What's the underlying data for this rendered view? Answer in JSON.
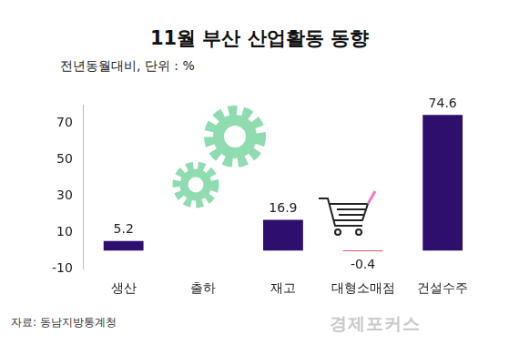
{
  "chart_data": {
    "type": "bar",
    "title": "11월 부산 산업활동 동향",
    "subtitle": "전년동월대비, 단위 : %",
    "source": "자료: 동남지방통계청",
    "credit": "경제포커스",
    "categories": [
      "생산",
      "출하",
      "재고",
      "대형소매점",
      "건설수주"
    ],
    "values": [
      5.2,
      null,
      16.9,
      -0.4,
      74.6
    ],
    "colors": [
      "#2e0f6e",
      "#2e0f6e",
      "#2e0f6e",
      "#d9262a",
      "#2e0f6e"
    ],
    "ylim": [
      -10,
      80
    ],
    "yticks": [
      -10,
      10,
      30,
      50,
      70
    ],
    "grid": false,
    "data_labels": true
  }
}
